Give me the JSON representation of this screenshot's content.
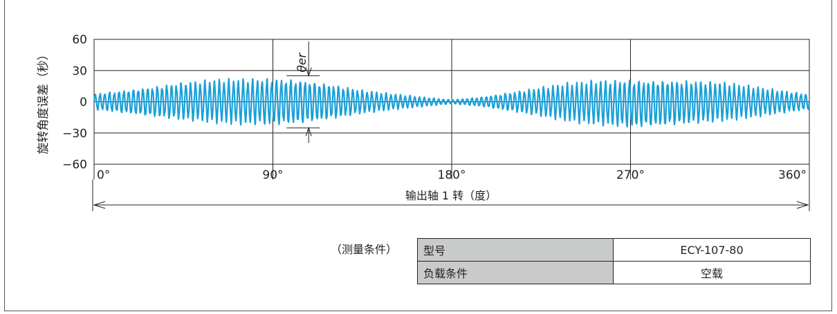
{
  "chart_data": {
    "type": "line",
    "ylabel": "旋转角度误差（秒）",
    "xlabel": "输出轴 1 转（度）",
    "ylim": [
      -60,
      60
    ],
    "xlim": [
      0,
      360
    ],
    "yticks": [
      60,
      30,
      0,
      -30,
      -60
    ],
    "ytick_labels": [
      "60",
      "30",
      "0",
      "−30",
      "−60"
    ],
    "xticks": [
      0,
      90,
      180,
      270,
      360
    ],
    "xtick_labels": [
      "0°",
      "90°",
      "180°",
      "270°",
      "360°"
    ],
    "annotation": "θer",
    "annotation_range": [
      -25,
      25
    ],
    "annotation_x": 108,
    "grid": true,
    "series": [
      {
        "color": "#1aa0d8",
        "x": [
          0,
          15,
          30,
          45,
          60,
          75,
          90,
          105,
          120,
          135,
          150,
          165,
          180,
          195,
          210,
          225,
          240,
          255,
          270,
          285,
          300,
          315,
          330,
          345,
          360
        ],
        "y_max": [
          8,
          12,
          16,
          20,
          22,
          23,
          24,
          23,
          18,
          12,
          8,
          5,
          2,
          5,
          10,
          15,
          19,
          22,
          23,
          23,
          22,
          20,
          16,
          12,
          8
        ],
        "y_min": [
          -8,
          -12,
          -16,
          -19,
          -21,
          -23,
          -24,
          -23,
          -18,
          -12,
          -8,
          -5,
          -2,
          -5,
          -10,
          -15,
          -20,
          -24,
          -27,
          -26,
          -23,
          -20,
          -16,
          -12,
          -8
        ]
      }
    ]
  },
  "conditions": {
    "label": "（测量条件）",
    "rows": [
      {
        "key": "型号",
        "value": "ECY-107-80"
      },
      {
        "key": "负载条件",
        "value": "空载"
      }
    ]
  }
}
